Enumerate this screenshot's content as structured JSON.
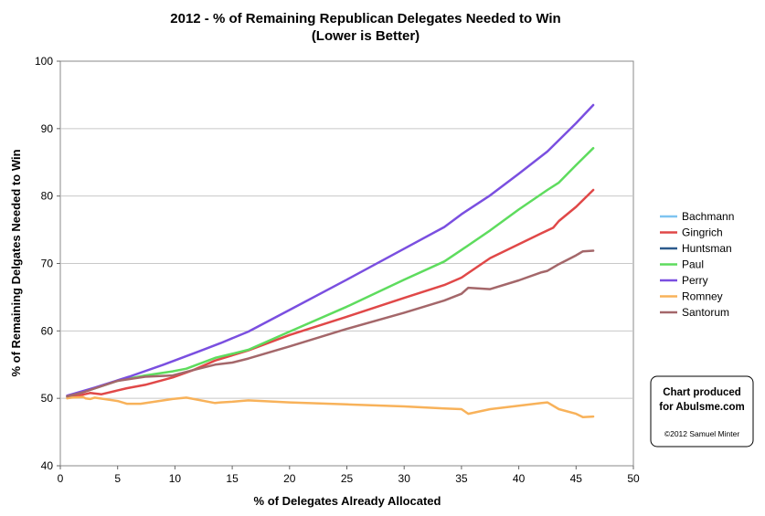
{
  "chart_data": {
    "type": "line",
    "title": "2012 - % of Remaining Republican Delegates Needed to Win",
    "subtitle": "(Lower is Better)",
    "xlabel": "% of Delegates Already Allocated",
    "ylabel": "% of Remaining Delgates Needed to Win",
    "xlim": [
      0,
      50
    ],
    "ylim": [
      40,
      100
    ],
    "xticks": [
      "0",
      "5",
      "10",
      "15",
      "20",
      "25",
      "30",
      "35",
      "40",
      "45",
      "50"
    ],
    "yticks": [
      "40",
      "50",
      "60",
      "70",
      "80",
      "90",
      "100"
    ],
    "grid": true,
    "legend_position": "right",
    "series": [
      {
        "name": "Bachmann",
        "color": "#7ec4f0",
        "x": [],
        "y": []
      },
      {
        "name": "Gingrich",
        "color": "#e04848",
        "x": [
          0.6,
          1.6,
          2.6,
          3.6,
          5.8,
          7.4,
          9.8,
          11.6,
          13.5,
          16.4,
          20.0,
          25.0,
          30.0,
          33.5,
          35.0,
          37.5,
          42.0,
          43.0,
          43.5,
          45.0,
          46.5
        ],
        "y": [
          50.2,
          50.4,
          50.8,
          50.6,
          51.5,
          52.0,
          53.1,
          54.2,
          55.6,
          57.1,
          59.4,
          62.1,
          64.9,
          66.8,
          67.9,
          70.8,
          74.5,
          75.3,
          76.3,
          78.4,
          80.9
        ]
      },
      {
        "name": "Huntsman",
        "color": "#2c5a8c",
        "x": [],
        "y": []
      },
      {
        "name": "Paul",
        "color": "#5edc5e",
        "x": [
          0.6,
          2.5,
          5.0,
          7.4,
          9.8,
          11.0,
          13.5,
          15.0,
          16.4,
          20.0,
          25.0,
          30.0,
          33.5,
          35.0,
          37.5,
          40.0,
          42.5,
          43.5,
          45.0,
          46.5
        ],
        "y": [
          50.3,
          51.2,
          52.6,
          53.4,
          54.0,
          54.4,
          56.0,
          56.6,
          57.2,
          59.9,
          63.6,
          67.6,
          70.3,
          72.0,
          74.9,
          78.0,
          80.9,
          82.0,
          84.6,
          87.1
        ]
      },
      {
        "name": "Perry",
        "color": "#7a4fe0",
        "x": [
          0.6,
          3.0,
          6.0,
          9.0,
          12.0,
          14.0,
          16.4,
          20.0,
          25.0,
          30.0,
          33.5,
          35.0,
          37.5,
          40.0,
          42.5,
          45.0,
          46.5
        ],
        "y": [
          50.4,
          51.6,
          53.2,
          55.0,
          56.9,
          58.2,
          59.9,
          63.1,
          67.6,
          72.2,
          75.4,
          77.3,
          80.1,
          83.3,
          86.6,
          90.8,
          93.5
        ]
      },
      {
        "name": "Romney",
        "color": "#f8b25a",
        "x": [
          0.6,
          1.0,
          2.0,
          2.2,
          2.6,
          3.0,
          5.0,
          5.8,
          7.0,
          9.8,
          11.0,
          13.5,
          14.0,
          15.0,
          16.4,
          20.0,
          25.0,
          30.0,
          33.5,
          35.0,
          35.6,
          37.5,
          40.0,
          42.0,
          42.5,
          43.5,
          45.0,
          45.6,
          46.5
        ],
        "y": [
          50.0,
          50.1,
          50.2,
          50.0,
          49.9,
          50.1,
          49.6,
          49.2,
          49.2,
          49.9,
          50.1,
          49.3,
          49.4,
          49.5,
          49.7,
          49.4,
          49.1,
          48.8,
          48.5,
          48.4,
          47.7,
          48.4,
          48.9,
          49.3,
          49.4,
          48.4,
          47.7,
          47.2,
          47.3
        ]
      },
      {
        "name": "Santorum",
        "color": "#a4676a",
        "x": [
          0.6,
          2.0,
          5.0,
          7.4,
          9.8,
          11.6,
          13.5,
          15.0,
          16.4,
          20.0,
          25.0,
          30.0,
          33.5,
          35.0,
          35.6,
          37.5,
          40.0,
          42.0,
          42.5,
          43.5,
          45.0,
          45.6,
          46.5
        ],
        "y": [
          50.3,
          50.9,
          52.6,
          53.2,
          53.4,
          54.2,
          55.0,
          55.3,
          55.9,
          57.7,
          60.3,
          62.7,
          64.5,
          65.5,
          66.4,
          66.2,
          67.5,
          68.7,
          68.9,
          69.9,
          71.2,
          71.8,
          71.9
        ]
      }
    ]
  },
  "credit": {
    "line1": "Chart produced",
    "line2": "for Abulsme.com",
    "line3": "©2012 Samuel Minter"
  }
}
